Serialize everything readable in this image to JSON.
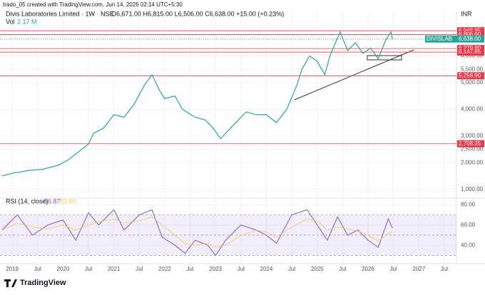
{
  "header": {
    "caption": "trado_05 created with TradingView.com, Jun 14, 2026 02:14 UTC+5:30"
  },
  "footer": {
    "brand": "TradingView"
  },
  "chart_data": [
    {
      "type": "line",
      "title": "Divis Laboratories Limited · 1W · NSE",
      "ohlc": "O6,671.00 H6,815.00 L6,506.00 C6,638.00 +15.00 (+0.23%)",
      "volume_label": "Vol",
      "volume_value": "2.17 M",
      "currency": "INR",
      "color": "#26a69a",
      "x": [
        2018.8,
        2019.0,
        2019.3,
        2019.6,
        2019.9,
        2020.1,
        2020.3,
        2020.5,
        2020.6,
        2020.8,
        2021.0,
        2021.2,
        2021.4,
        2021.6,
        2021.75,
        2021.9,
        2022.0,
        2022.2,
        2022.35,
        2022.6,
        2022.8,
        2022.95,
        2023.1,
        2023.2,
        2023.4,
        2023.6,
        2023.8,
        2024.0,
        2024.2,
        2024.4,
        2024.6,
        2024.7,
        2024.85,
        2025.0,
        2025.15,
        2025.25,
        2025.45,
        2025.6,
        2025.75,
        2025.9,
        2026.05,
        2026.2,
        2026.35,
        2026.45,
        2026.48
      ],
      "values": [
        1500,
        1600,
        1700,
        1750,
        1900,
        2100,
        2400,
        2700,
        3100,
        3300,
        3800,
        3700,
        4200,
        4900,
        5300,
        4700,
        4400,
        4500,
        4000,
        3700,
        3600,
        3300,
        2900,
        3100,
        3500,
        3900,
        3800,
        3800,
        3500,
        4000,
        4900,
        5500,
        6000,
        5800,
        5300,
        6000,
        6900,
        6200,
        6500,
        6100,
        6300,
        5900,
        6600,
        6900,
        6638
      ],
      "last_price": {
        "symbol": "DIVISLAB",
        "value": 6638,
        "label": "6,638.00"
      },
      "levels": [
        {
          "value": 6946.85,
          "label": "6,946.85"
        },
        {
          "value": 6806.6,
          "label": "6,806.60"
        },
        {
          "value": 6279.9,
          "label": "6,279.90"
        },
        {
          "value": 6147.85,
          "label": "6,147.85"
        },
        {
          "value": 5258.9,
          "label": "5,258.90"
        },
        {
          "value": 2708.25,
          "label": "2,708.25"
        }
      ],
      "ylim": [
        750,
        7700
      ],
      "yticks": [
        {
          "value": 1000,
          "label": "1,000.00"
        },
        {
          "value": 2000,
          "label": "2,000.00"
        },
        {
          "value": 2500,
          "label": "2,500.00"
        },
        {
          "value": 3000,
          "label": "3,000.00"
        },
        {
          "value": 4000,
          "label": "4,000.00"
        },
        {
          "value": 5000,
          "label": "5,000.00"
        },
        {
          "value": 5500,
          "label": "5,500.00"
        },
        {
          "value": 6000,
          "label": "6,000.00"
        }
      ],
      "xlim": [
        2018.76,
        2027.74
      ],
      "xticks": [
        2019,
        {
          "value": 2019.5,
          "label": "Jul"
        },
        2020,
        {
          "value": 2020.5,
          "label": "Jul"
        },
        2021,
        {
          "value": 2021.5,
          "label": "Jul"
        },
        2022,
        {
          "value": 2022.5,
          "label": "Jul"
        },
        2023,
        {
          "value": 2023.5,
          "label": "Jul"
        },
        2024,
        {
          "value": 2024.5,
          "label": "Jul"
        },
        2025,
        {
          "value": 2025.5,
          "label": "Jul"
        },
        2026,
        {
          "value": 2026.5,
          "label": "Jul"
        },
        2027,
        {
          "value": 2027.5,
          "label": "Jul"
        }
      ]
    },
    {
      "type": "line",
      "title": "RSI (14, close)",
      "readouts": [
        {
          "value": 56.87,
          "label": "56.87",
          "color": "#7e57c2"
        },
        {
          "value": 53.6,
          "label": "53.60",
          "color": "#f7c948"
        }
      ],
      "x": [
        2018.8,
        2019.1,
        2019.4,
        2019.7,
        2020.0,
        2020.25,
        2020.5,
        2020.7,
        2021.0,
        2021.2,
        2021.5,
        2021.75,
        2021.95,
        2022.2,
        2022.4,
        2022.6,
        2022.85,
        2023.0,
        2023.2,
        2023.5,
        2023.8,
        2024.0,
        2024.2,
        2024.5,
        2024.8,
        2025.0,
        2025.2,
        2025.4,
        2025.6,
        2025.8,
        2026.0,
        2026.2,
        2026.4,
        2026.48
      ],
      "series": [
        {
          "color": "#7e57c2",
          "values": [
            55,
            70,
            50,
            60,
            65,
            45,
            72,
            60,
            75,
            55,
            70,
            75,
            48,
            40,
            32,
            45,
            40,
            30,
            45,
            60,
            55,
            50,
            42,
            70,
            75,
            60,
            45,
            68,
            50,
            55,
            45,
            38,
            66,
            56.87
          ]
        },
        {
          "color": "#f7c948",
          "values": [
            55,
            62,
            58,
            56,
            60,
            55,
            60,
            63,
            66,
            62,
            64,
            68,
            60,
            50,
            42,
            40,
            42,
            38,
            40,
            50,
            55,
            53,
            48,
            58,
            66,
            64,
            55,
            58,
            56,
            54,
            50,
            44,
            52,
            53.6
          ]
        }
      ],
      "levels": [
        70,
        50,
        30
      ],
      "ylim": [
        24,
        83
      ],
      "yticks": [
        {
          "value": 40,
          "label": "40.00"
        },
        {
          "value": 60,
          "label": "60.00"
        },
        {
          "value": 80,
          "label": "80.00"
        }
      ]
    }
  ]
}
